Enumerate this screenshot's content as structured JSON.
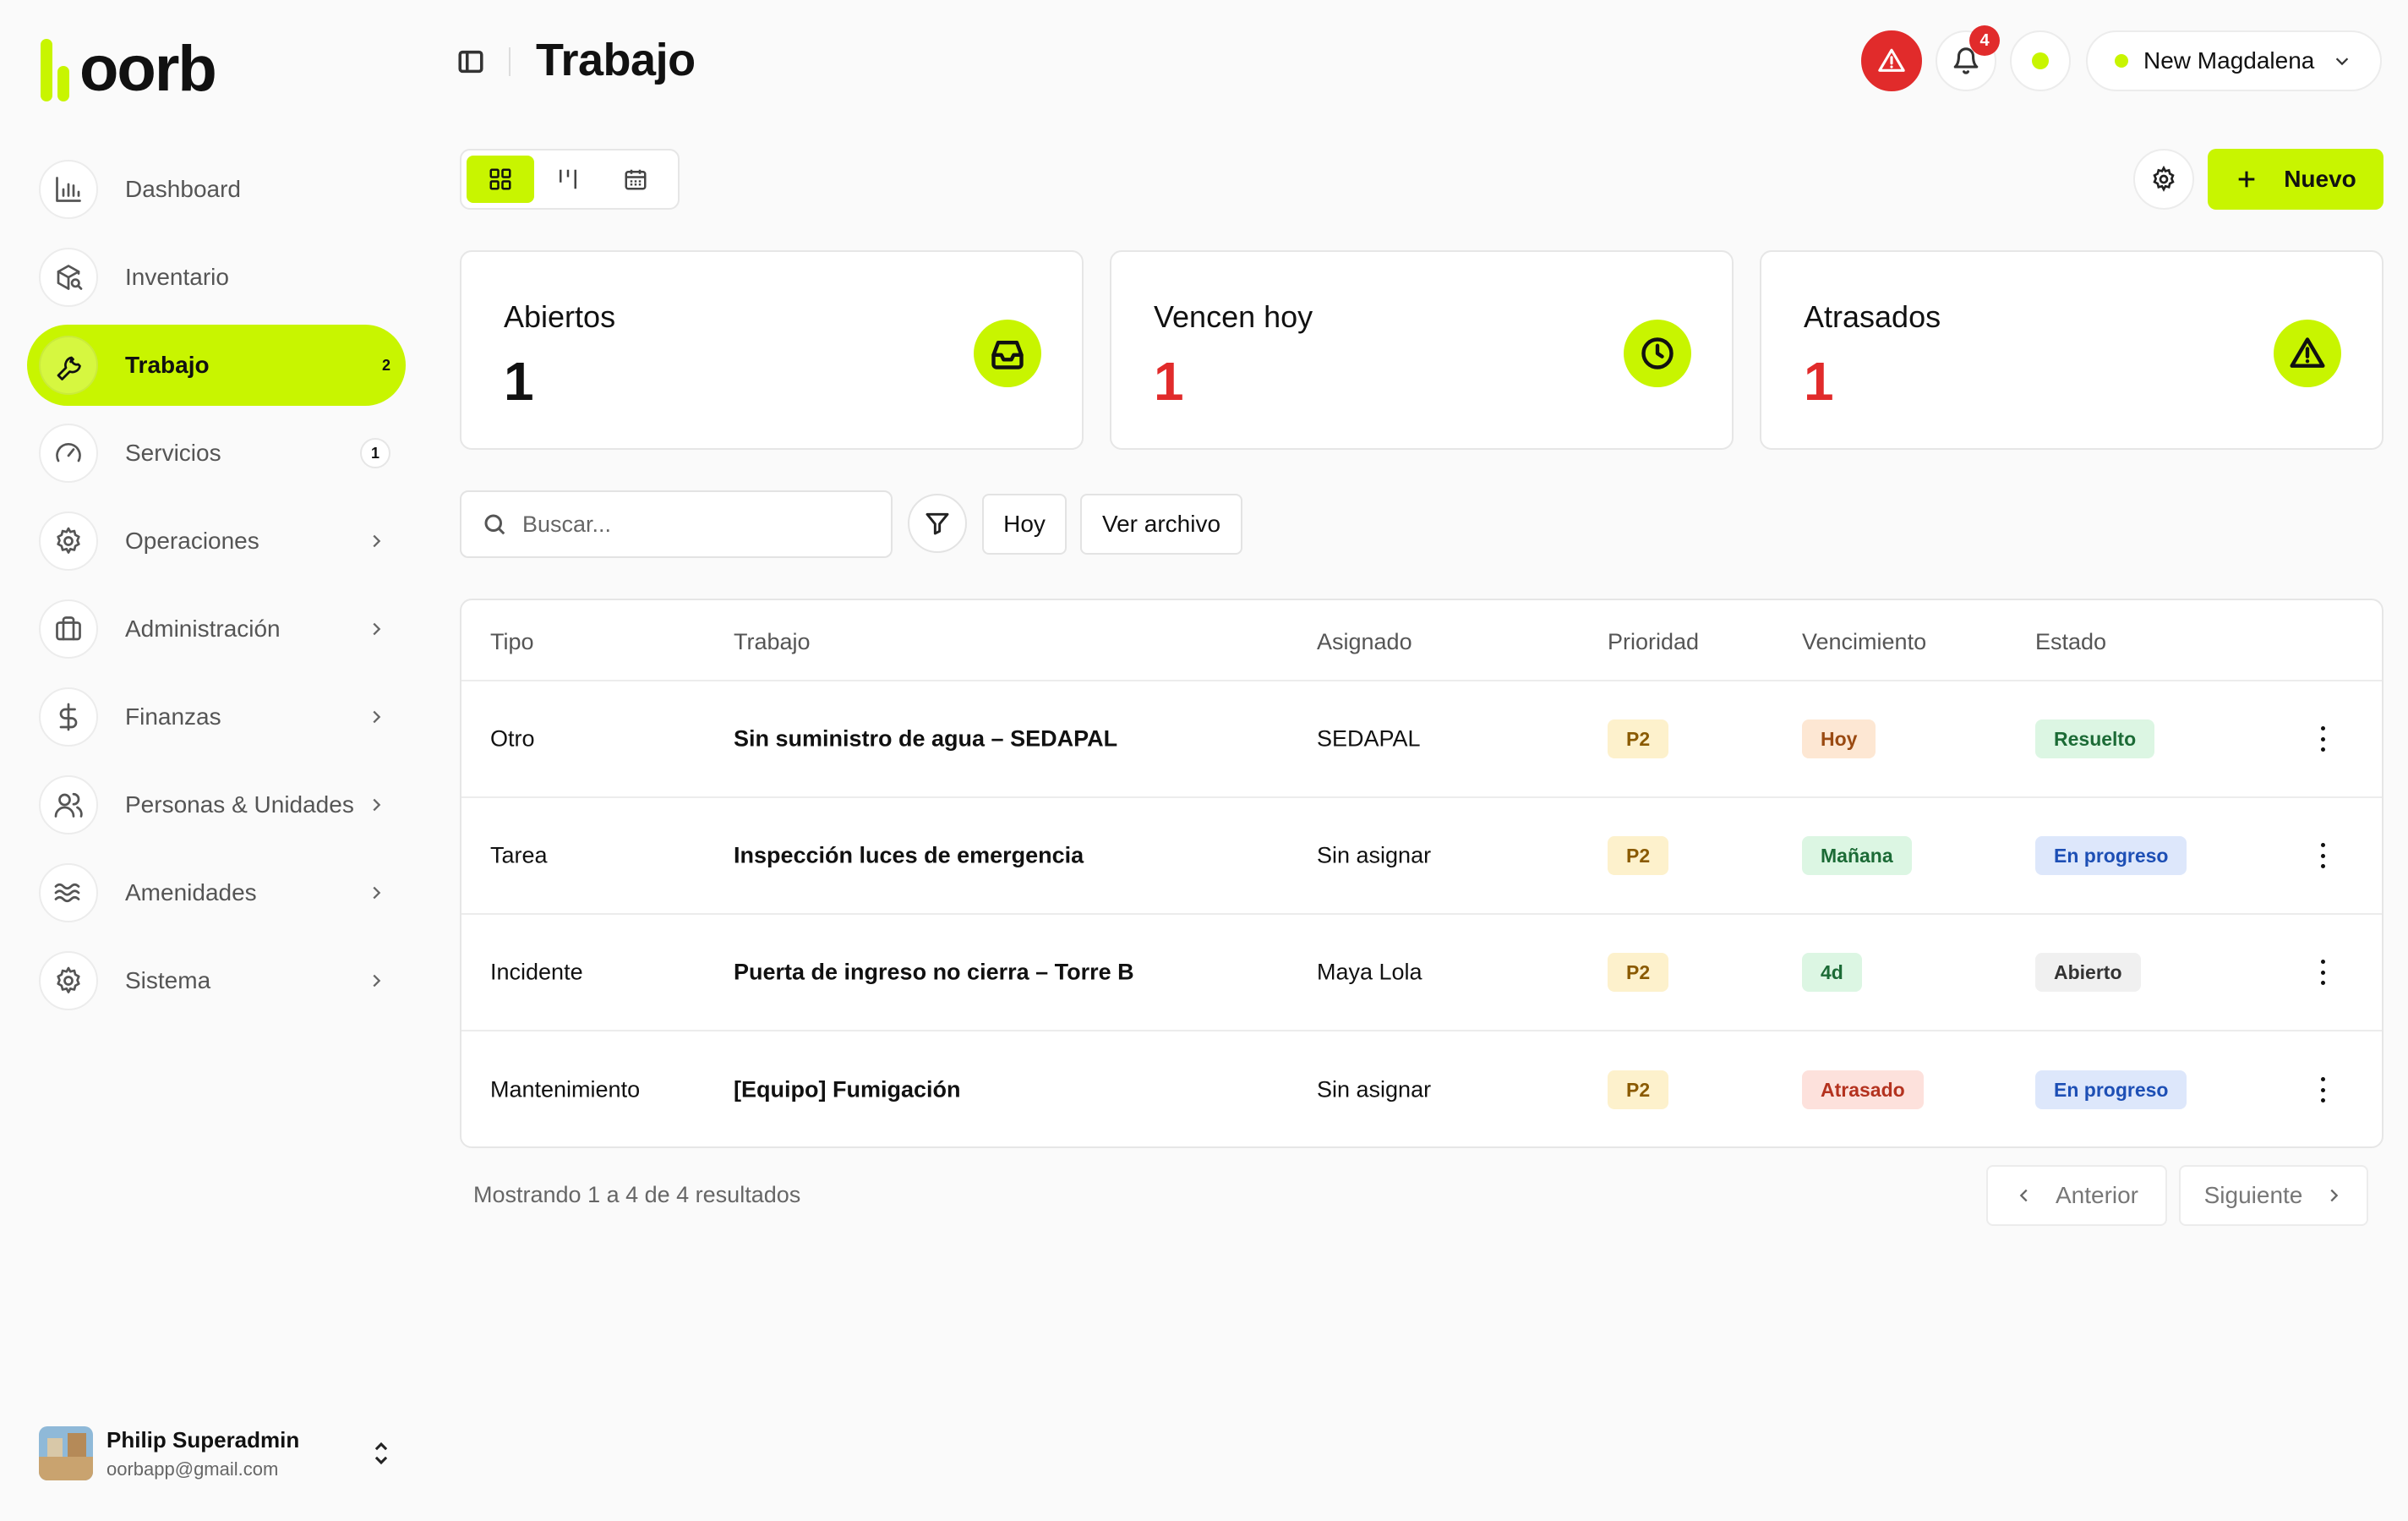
{
  "brand": {
    "name": "oorb",
    "accent": "#c8f500",
    "danger": "#e12b2b"
  },
  "sidebar": {
    "items": [
      {
        "label": "Dashboard",
        "icon": "bar-chart-icon"
      },
      {
        "label": "Inventario",
        "icon": "package-search-icon"
      },
      {
        "label": "Trabajo",
        "icon": "wrench-icon",
        "badge": "2",
        "active": true
      },
      {
        "label": "Servicios",
        "icon": "gauge-icon",
        "badge": "1"
      },
      {
        "label": "Operaciones",
        "icon": "gear-icon",
        "expandable": true
      },
      {
        "label": "Administración",
        "icon": "briefcase-icon",
        "expandable": true
      },
      {
        "label": "Finanzas",
        "icon": "dollar-icon",
        "expandable": true
      },
      {
        "label": "Personas & Unidades",
        "icon": "users-icon",
        "expandable": true
      },
      {
        "label": "Amenidades",
        "icon": "waves-icon",
        "expandable": true
      },
      {
        "label": "Sistema",
        "icon": "gear-icon",
        "expandable": true
      }
    ]
  },
  "user": {
    "name": "Philip Superadmin",
    "email": "oorbapp@gmail.com"
  },
  "header": {
    "title": "Trabajo",
    "notifications_count": "4",
    "location": "New Magdalena"
  },
  "toolbar": {
    "views": [
      "grid",
      "kanban",
      "calendar"
    ],
    "active_view": "grid",
    "new_label": "Nuevo"
  },
  "stats": [
    {
      "label": "Abiertos",
      "value": "1",
      "icon": "inbox-icon"
    },
    {
      "label": "Vencen hoy",
      "value": "1",
      "icon": "clock-icon"
    },
    {
      "label": "Atrasados",
      "value": "1",
      "icon": "warning-icon"
    }
  ],
  "filters": {
    "search_placeholder": "Buscar...",
    "today_label": "Hoy",
    "archive_label": "Ver archivo"
  },
  "table": {
    "columns": [
      "Tipo",
      "Trabajo",
      "Asignado",
      "Prioridad",
      "Vencimiento",
      "Estado"
    ],
    "rows": [
      {
        "tipo": "Otro",
        "trabajo": "Sin suministro de agua – SEDAPAL",
        "asignado": "SEDAPAL",
        "prioridad": "P2",
        "vencimiento": "Hoy",
        "estado": "Resuelto"
      },
      {
        "tipo": "Tarea",
        "trabajo": "Inspección luces de emergencia",
        "asignado": "Sin asignar",
        "prioridad": "P2",
        "vencimiento": "Mañana",
        "estado": "En progreso"
      },
      {
        "tipo": "Incidente",
        "trabajo": "Puerta de ingreso no cierra – Torre B",
        "asignado": "Maya Lola",
        "prioridad": "P2",
        "vencimiento": "4d",
        "estado": "Abierto"
      },
      {
        "tipo": "Mantenimiento",
        "trabajo": "[Equipo] Fumigación",
        "asignado": "Sin asignar",
        "prioridad": "P2",
        "vencimiento": "Atrasado",
        "estado": "En progreso"
      }
    ]
  },
  "pagination": {
    "summary": "Mostrando 1 a 4 de 4 resultados",
    "prev_label": "Anterior",
    "next_label": "Siguiente"
  }
}
